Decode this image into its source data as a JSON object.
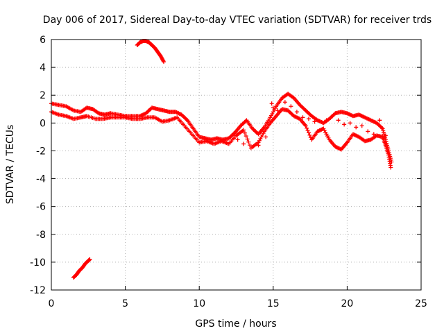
{
  "chart_data": {
    "type": "scatter",
    "title": "Day 006 of 2017, Sidereal Day-to-day VTEC variation (SDTVAR) for receiver trds",
    "xlabel": "GPS time / hours",
    "ylabel": "SDTVAR / TECUs",
    "xlim": [
      0,
      25
    ],
    "ylim": [
      -12,
      6
    ],
    "xticks": [
      0,
      5,
      10,
      15,
      20,
      25
    ],
    "yticks": [
      -12,
      -10,
      -8,
      -6,
      -4,
      -2,
      0,
      2,
      4,
      6
    ],
    "xtick_labels": [
      "0",
      "5",
      "10",
      "15",
      "20",
      "25"
    ],
    "ytick_labels": [
      "-12",
      "-10",
      "-8",
      "-6",
      "-4",
      "-2",
      "0",
      "2",
      "4",
      "6"
    ],
    "grid": true,
    "marker": "plus",
    "color": "#ff0000",
    "series": [
      {
        "name": "main_upper",
        "points": [
          [
            0,
            1.4
          ],
          [
            0.5,
            1.3
          ],
          [
            1,
            1.2
          ],
          [
            1.5,
            0.9
          ],
          [
            2,
            0.8
          ],
          [
            2.4,
            1.1
          ],
          [
            2.8,
            1.0
          ],
          [
            3.2,
            0.7
          ],
          [
            3.6,
            0.6
          ],
          [
            4,
            0.7
          ],
          [
            4.5,
            0.6
          ],
          [
            5,
            0.5
          ],
          [
            5.5,
            0.5
          ],
          [
            6,
            0.5
          ],
          [
            6.4,
            0.7
          ],
          [
            6.8,
            1.1
          ],
          [
            7.2,
            1.0
          ],
          [
            7.6,
            0.9
          ],
          [
            8,
            0.8
          ],
          [
            8.4,
            0.8
          ],
          [
            8.8,
            0.6
          ],
          [
            9.2,
            0.2
          ],
          [
            9.6,
            -0.4
          ],
          [
            10,
            -1.0
          ],
          [
            10.4,
            -1.1
          ],
          [
            10.8,
            -1.2
          ],
          [
            11.2,
            -1.1
          ],
          [
            11.6,
            -1.2
          ],
          [
            12,
            -1.1
          ],
          [
            12.4,
            -0.7
          ],
          [
            12.8,
            -0.2
          ],
          [
            13.2,
            0.2
          ],
          [
            13.6,
            -0.4
          ],
          [
            14,
            -0.8
          ],
          [
            14.4,
            -0.3
          ],
          [
            14.8,
            0.4
          ],
          [
            15.2,
            1.2
          ],
          [
            15.6,
            1.8
          ],
          [
            16,
            2.1
          ],
          [
            16.4,
            1.8
          ],
          [
            16.8,
            1.3
          ],
          [
            17.2,
            0.9
          ],
          [
            17.6,
            0.5
          ],
          [
            18,
            0.2
          ],
          [
            18.4,
            0.0
          ],
          [
            18.8,
            0.3
          ],
          [
            19.2,
            0.7
          ],
          [
            19.6,
            0.8
          ],
          [
            20,
            0.7
          ],
          [
            20.4,
            0.5
          ],
          [
            20.8,
            0.6
          ],
          [
            21.2,
            0.4
          ],
          [
            21.6,
            0.2
          ],
          [
            22,
            0.0
          ],
          [
            22.4,
            -0.4
          ],
          [
            22.6,
            -1.2
          ],
          [
            22.8,
            -2.0
          ],
          [
            23,
            -2.8
          ]
        ]
      },
      {
        "name": "main_lower",
        "points": [
          [
            0,
            0.8
          ],
          [
            0.5,
            0.6
          ],
          [
            1,
            0.5
          ],
          [
            1.5,
            0.3
          ],
          [
            2,
            0.4
          ],
          [
            2.4,
            0.5
          ],
          [
            3,
            0.3
          ],
          [
            3.5,
            0.3
          ],
          [
            4,
            0.4
          ],
          [
            4.5,
            0.4
          ],
          [
            5,
            0.4
          ],
          [
            5.5,
            0.3
          ],
          [
            6,
            0.3
          ],
          [
            6.5,
            0.4
          ],
          [
            7,
            0.4
          ],
          [
            7.5,
            0.1
          ],
          [
            8,
            0.2
          ],
          [
            8.5,
            0.4
          ],
          [
            9,
            -0.2
          ],
          [
            9.5,
            -0.8
          ],
          [
            10,
            -1.4
          ],
          [
            10.5,
            -1.3
          ],
          [
            11,
            -1.5
          ],
          [
            11.5,
            -1.3
          ],
          [
            12,
            -1.5
          ],
          [
            12.5,
            -0.9
          ],
          [
            13,
            -0.5
          ],
          [
            13.5,
            -1.8
          ],
          [
            14,
            -1.4
          ],
          [
            14.4,
            -0.6
          ],
          [
            14.8,
            0.0
          ],
          [
            15.2,
            0.5
          ],
          [
            15.6,
            1.0
          ],
          [
            16,
            0.9
          ],
          [
            16.4,
            0.5
          ],
          [
            16.8,
            0.3
          ],
          [
            17.2,
            -0.2
          ],
          [
            17.6,
            -1.2
          ],
          [
            18,
            -0.6
          ],
          [
            18.4,
            -0.4
          ],
          [
            18.8,
            -1.2
          ],
          [
            19.2,
            -1.7
          ],
          [
            19.6,
            -1.9
          ],
          [
            20,
            -1.4
          ],
          [
            20.4,
            -0.8
          ],
          [
            20.8,
            -1.0
          ],
          [
            21.2,
            -1.3
          ],
          [
            21.6,
            -1.2
          ],
          [
            22,
            -0.9
          ],
          [
            22.4,
            -1.0
          ],
          [
            22.6,
            -1.6
          ],
          [
            22.8,
            -2.3
          ],
          [
            22.95,
            -3.2
          ]
        ]
      },
      {
        "name": "mid_band",
        "points": [
          [
            15.8,
            1.5
          ],
          [
            16.2,
            1.2
          ],
          [
            16.6,
            0.8
          ],
          [
            17,
            0.4
          ],
          [
            17.4,
            0.3
          ],
          [
            17.8,
            0.1
          ],
          [
            18.2,
            -0.5
          ],
          [
            18.6,
            0.2
          ],
          [
            19,
            0.5
          ],
          [
            19.4,
            0.2
          ],
          [
            19.8,
            -0.1
          ],
          [
            20.2,
            0.0
          ],
          [
            20.6,
            -0.3
          ],
          [
            21,
            -0.2
          ],
          [
            21.4,
            -0.6
          ],
          [
            21.8,
            -0.8
          ],
          [
            22.2,
            0.2
          ],
          [
            22.6,
            -0.9
          ],
          [
            14.5,
            -1.0
          ],
          [
            14.0,
            -1.6
          ],
          [
            13.0,
            -1.5
          ],
          [
            12.6,
            -1.2
          ],
          [
            15,
            1.1
          ],
          [
            14.9,
            1.4
          ],
          [
            15.3,
            0.9
          ]
        ]
      },
      {
        "name": "upper_arc",
        "points": [
          [
            5.8,
            5.6
          ],
          [
            6.0,
            5.8
          ],
          [
            6.2,
            5.9
          ],
          [
            6.4,
            5.9
          ],
          [
            6.6,
            5.8
          ],
          [
            6.8,
            5.6
          ],
          [
            7.0,
            5.4
          ],
          [
            7.2,
            5.1
          ],
          [
            7.4,
            4.8
          ],
          [
            7.6,
            4.4
          ]
        ]
      },
      {
        "name": "lower_cluster",
        "points": [
          [
            1.5,
            -11.1
          ],
          [
            1.7,
            -10.9
          ],
          [
            1.9,
            -10.6
          ],
          [
            2.1,
            -10.4
          ],
          [
            2.3,
            -10.1
          ],
          [
            2.5,
            -9.9
          ],
          [
            2.6,
            -9.8
          ]
        ]
      }
    ]
  }
}
